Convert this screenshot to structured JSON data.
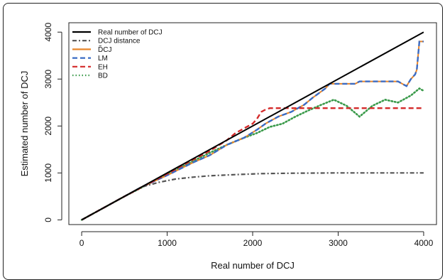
{
  "chart_data": {
    "type": "line",
    "xlabel": "Real number of DCJ",
    "ylabel": "Estimated number of DCJ",
    "xlim": [
      -150,
      4150
    ],
    "ylim": [
      -100,
      4200
    ],
    "xticks": [
      0,
      1000,
      2000,
      3000,
      4000
    ],
    "yticks": [
      0,
      1000,
      2000,
      3000,
      4000
    ],
    "legend_position": "top-left",
    "series": [
      {
        "name": "Real number of DCJ",
        "style": "solid",
        "color": "#000000",
        "x": [
          0,
          4000
        ],
        "y": [
          0,
          4000
        ]
      },
      {
        "name": "DCJ distance",
        "style": "dashdot",
        "color": "#555555",
        "x": [
          0,
          500,
          700,
          900,
          1100,
          1300,
          1500,
          1800,
          2100,
          2500,
          3000,
          3500,
          4000
        ],
        "y": [
          0,
          500,
          700,
          800,
          870,
          910,
          940,
          965,
          985,
          995,
          1000,
          1000,
          1000
        ]
      },
      {
        "name": "D̃CJ",
        "style": "solid",
        "color": "#e8862a",
        "x": [
          0,
          700,
          1000,
          1300,
          1500,
          1700,
          1900,
          2050,
          2150,
          2250,
          2300,
          2450,
          2600,
          2700,
          2850,
          2900,
          3200,
          3250,
          3700,
          3800,
          3850,
          3900,
          3920,
          3950,
          3970,
          4000
        ],
        "y": [
          0,
          700,
          950,
          1220,
          1380,
          1600,
          1750,
          1920,
          2050,
          2150,
          2200,
          2300,
          2450,
          2600,
          2800,
          2900,
          2900,
          2950,
          2950,
          2850,
          3000,
          3100,
          3200,
          3800,
          3800,
          3800
        ]
      },
      {
        "name": "LM",
        "style": "dashed",
        "color": "#3a6bc4",
        "x": [
          0,
          700,
          1000,
          1300,
          1500,
          1700,
          1900,
          2050,
          2150,
          2250,
          2300,
          2450,
          2600,
          2700,
          2850,
          2900,
          3200,
          3250,
          3700,
          3800,
          3850,
          3900,
          3920,
          3950,
          3970,
          4000
        ],
        "y": [
          0,
          700,
          950,
          1220,
          1380,
          1600,
          1750,
          1920,
          2050,
          2150,
          2200,
          2300,
          2450,
          2600,
          2800,
          2900,
          2900,
          2950,
          2950,
          2850,
          3000,
          3100,
          3200,
          3800,
          3800,
          3800
        ]
      },
      {
        "name": "EH",
        "style": "dashed",
        "color": "#d42a2a",
        "x": [
          0,
          500,
          1000,
          1300,
          1500,
          1700,
          1800,
          1900,
          2000,
          2050,
          2100,
          2150,
          2200,
          2300,
          2500,
          3000,
          3500,
          4000
        ],
        "y": [
          0,
          500,
          980,
          1280,
          1470,
          1700,
          1850,
          1950,
          2050,
          2150,
          2300,
          2350,
          2380,
          2380,
          2380,
          2380,
          2380,
          2380
        ]
      },
      {
        "name": "BD",
        "style": "dotted",
        "color": "#3a9a4a",
        "x": [
          0,
          500,
          1000,
          1300,
          1500,
          1700,
          1900,
          2050,
          2200,
          2350,
          2500,
          2650,
          2800,
          2950,
          3100,
          3250,
          3400,
          3550,
          3700,
          3850,
          3950,
          4000
        ],
        "y": [
          0,
          500,
          970,
          1250,
          1430,
          1600,
          1750,
          1850,
          1980,
          2050,
          2200,
          2330,
          2450,
          2560,
          2430,
          2200,
          2430,
          2560,
          2500,
          2650,
          2800,
          2750
        ]
      }
    ]
  },
  "legend": [
    {
      "label": "Real number of DCJ",
      "color": "#000000",
      "dash": ""
    },
    {
      "label": "DCJ distance",
      "color": "#555555",
      "dash": "6 3 2 3"
    },
    {
      "label": "D̃CJ",
      "color": "#e8862a",
      "dash": ""
    },
    {
      "label": "LM",
      "color": "#3a6bc4",
      "dash": "7 4"
    },
    {
      "label": "EH",
      "color": "#d42a2a",
      "dash": "7 4"
    },
    {
      "label": "BD",
      "color": "#3a9a4a",
      "dash": "1.5 3"
    }
  ]
}
